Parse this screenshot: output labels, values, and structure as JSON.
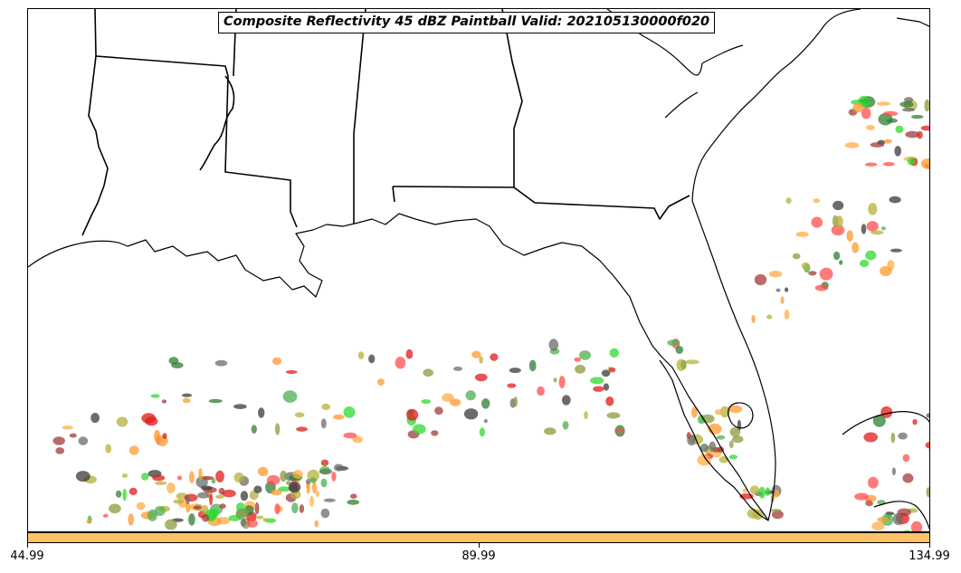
{
  "title": "Composite Reflectivity 45 dBZ Paintball Valid: 202105130000f020",
  "colorbar": {
    "color": "#ffc266",
    "ticks": [
      "44.99",
      "89.99",
      "134.99"
    ]
  },
  "member_colors": [
    "#e0191a",
    "#a33a3a",
    "#8e9a3c",
    "#b5b03a",
    "#ff9a2e",
    "#ffad44",
    "#2fd92f",
    "#3a3a3a",
    "#2e7d32",
    "#ff4d4d",
    "#6b6b6b",
    "#4caf50"
  ]
}
